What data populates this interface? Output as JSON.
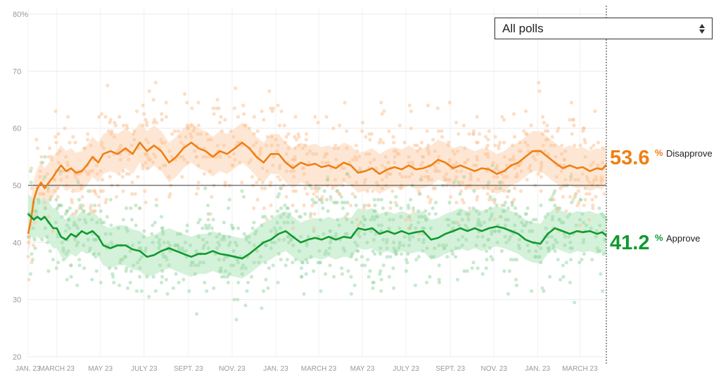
{
  "controls": {
    "poll_filter": {
      "selected": "All polls",
      "icon": "updown-arrows-icon"
    }
  },
  "chart_data": {
    "type": "line",
    "title": "",
    "xlabel": "",
    "ylabel": "",
    "ylim": [
      20,
      80
    ],
    "x_range": [
      "2023-01-20",
      "2025-04-07"
    ],
    "y_ticks": [
      "20",
      "30",
      "40",
      "50",
      "60",
      "70",
      "80%"
    ],
    "y_tick_values": [
      20,
      30,
      40,
      50,
      60,
      70,
      80
    ],
    "x_ticks": [
      {
        "date": "2023-01-20",
        "label": "JAN. 23"
      },
      {
        "date": "2023-03-01",
        "label": "MARCH 23"
      },
      {
        "date": "2023-05-01",
        "label": "MAY 23"
      },
      {
        "date": "2023-07-01",
        "label": "JULY 23"
      },
      {
        "date": "2023-09-01",
        "label": "SEPT. 23"
      },
      {
        "date": "2023-11-01",
        "label": "NOV. 23"
      },
      {
        "date": "2024-01-01",
        "label": "JAN. 23"
      },
      {
        "date": "2024-03-01",
        "label": "MARCH 23"
      },
      {
        "date": "2024-05-01",
        "label": "MAY 23"
      },
      {
        "date": "2024-07-01",
        "label": "JULY 23"
      },
      {
        "date": "2024-09-01",
        "label": "SEPT. 23"
      },
      {
        "date": "2024-11-01",
        "label": "NOV. 23"
      },
      {
        "date": "2025-01-01",
        "label": "JAN. 23"
      },
      {
        "date": "2025-03-01",
        "label": "MARCH 23"
      }
    ],
    "reference_line": 50,
    "grid": true,
    "legend": "right",
    "series": [
      {
        "name": "Disapprove",
        "end_value": "53.6",
        "end_unit": "%",
        "color": "#f07f13",
        "poll_color": "#fbc395",
        "band_color": "#fde3cd",
        "band_halfwidth": 3.5,
        "scatter_spread": 4.5,
        "points": [
          [
            "2023-01-20",
            41.5
          ],
          [
            "2023-01-24",
            44.0
          ],
          [
            "2023-01-28",
            47.5
          ],
          [
            "2023-02-02",
            49.5
          ],
          [
            "2023-02-07",
            50.5
          ],
          [
            "2023-02-12",
            49.5
          ],
          [
            "2023-02-18",
            50.5
          ],
          [
            "2023-02-24",
            51.5
          ],
          [
            "2023-03-01",
            52.5
          ],
          [
            "2023-03-07",
            53.5
          ],
          [
            "2023-03-14",
            52.5
          ],
          [
            "2023-03-21",
            53.0
          ],
          [
            "2023-03-28",
            52.2
          ],
          [
            "2023-04-05",
            52.5
          ],
          [
            "2023-04-12",
            53.5
          ],
          [
            "2023-04-20",
            55.0
          ],
          [
            "2023-04-28",
            54.0
          ],
          [
            "2023-05-05",
            55.5
          ],
          [
            "2023-05-15",
            56.0
          ],
          [
            "2023-05-25",
            55.5
          ],
          [
            "2023-06-05",
            56.5
          ],
          [
            "2023-06-15",
            55.5
          ],
          [
            "2023-06-25",
            57.5
          ],
          [
            "2023-07-05",
            56.0
          ],
          [
            "2023-07-15",
            57.0
          ],
          [
            "2023-07-25",
            56.0
          ],
          [
            "2023-08-05",
            54.0
          ],
          [
            "2023-08-15",
            55.0
          ],
          [
            "2023-08-25",
            56.5
          ],
          [
            "2023-09-05",
            57.5
          ],
          [
            "2023-09-15",
            56.5
          ],
          [
            "2023-09-25",
            56.0
          ],
          [
            "2023-10-05",
            55.0
          ],
          [
            "2023-10-15",
            56.0
          ],
          [
            "2023-10-25",
            55.5
          ],
          [
            "2023-11-05",
            56.5
          ],
          [
            "2023-11-15",
            57.5
          ],
          [
            "2023-11-25",
            56.5
          ],
          [
            "2023-12-05",
            55.0
          ],
          [
            "2023-12-15",
            54.0
          ],
          [
            "2023-12-25",
            55.5
          ],
          [
            "2024-01-05",
            55.5
          ],
          [
            "2024-01-15",
            54.0
          ],
          [
            "2024-01-25",
            53.0
          ],
          [
            "2024-02-05",
            54.0
          ],
          [
            "2024-02-15",
            53.5
          ],
          [
            "2024-02-25",
            53.8
          ],
          [
            "2024-03-05",
            53.2
          ],
          [
            "2024-03-15",
            53.5
          ],
          [
            "2024-03-25",
            53.0
          ],
          [
            "2024-04-05",
            54.0
          ],
          [
            "2024-04-15",
            53.5
          ],
          [
            "2024-04-25",
            52.2
          ],
          [
            "2024-05-05",
            52.5
          ],
          [
            "2024-05-15",
            53.0
          ],
          [
            "2024-05-25",
            52.0
          ],
          [
            "2024-06-05",
            52.8
          ],
          [
            "2024-06-15",
            53.2
          ],
          [
            "2024-06-25",
            52.8
          ],
          [
            "2024-07-05",
            53.5
          ],
          [
            "2024-07-15",
            52.8
          ],
          [
            "2024-07-25",
            53.0
          ],
          [
            "2024-08-05",
            53.5
          ],
          [
            "2024-08-15",
            54.5
          ],
          [
            "2024-08-25",
            54.0
          ],
          [
            "2024-09-05",
            53.0
          ],
          [
            "2024-09-15",
            53.5
          ],
          [
            "2024-09-25",
            53.0
          ],
          [
            "2024-10-05",
            52.5
          ],
          [
            "2024-10-15",
            53.0
          ],
          [
            "2024-10-25",
            52.8
          ],
          [
            "2024-11-05",
            52.0
          ],
          [
            "2024-11-15",
            52.5
          ],
          [
            "2024-11-25",
            53.5
          ],
          [
            "2024-12-05",
            54.0
          ],
          [
            "2024-12-15",
            55.0
          ],
          [
            "2024-12-25",
            56.0
          ],
          [
            "2025-01-05",
            56.0
          ],
          [
            "2025-01-15",
            55.0
          ],
          [
            "2025-01-25",
            54.0
          ],
          [
            "2025-02-05",
            53.0
          ],
          [
            "2025-02-15",
            53.5
          ],
          [
            "2025-02-25",
            53.0
          ],
          [
            "2025-03-05",
            53.2
          ],
          [
            "2025-03-15",
            52.5
          ],
          [
            "2025-03-25",
            53.0
          ],
          [
            "2025-04-01",
            52.8
          ],
          [
            "2025-04-07",
            53.6
          ]
        ]
      },
      {
        "name": "Approve",
        "end_value": "41.2",
        "end_unit": "%",
        "color": "#0f9a2e",
        "poll_color": "#9ad9a8",
        "band_color": "#cdeed4",
        "band_halfwidth": 3.5,
        "scatter_spread": 4.5,
        "points": [
          [
            "2023-01-20",
            45.0
          ],
          [
            "2023-01-24",
            44.5
          ],
          [
            "2023-01-28",
            44.0
          ],
          [
            "2023-02-02",
            44.5
          ],
          [
            "2023-02-07",
            44.0
          ],
          [
            "2023-02-12",
            44.5
          ],
          [
            "2023-02-18",
            43.5
          ],
          [
            "2023-02-24",
            42.5
          ],
          [
            "2023-03-01",
            42.5
          ],
          [
            "2023-03-07",
            41.0
          ],
          [
            "2023-03-14",
            40.5
          ],
          [
            "2023-03-21",
            41.5
          ],
          [
            "2023-03-28",
            41.0
          ],
          [
            "2023-04-05",
            42.0
          ],
          [
            "2023-04-12",
            41.5
          ],
          [
            "2023-04-20",
            42.0
          ],
          [
            "2023-04-28",
            41.0
          ],
          [
            "2023-05-05",
            39.5
          ],
          [
            "2023-05-15",
            39.0
          ],
          [
            "2023-05-25",
            39.5
          ],
          [
            "2023-06-05",
            39.5
          ],
          [
            "2023-06-15",
            38.8
          ],
          [
            "2023-06-25",
            38.5
          ],
          [
            "2023-07-05",
            37.5
          ],
          [
            "2023-07-15",
            37.8
          ],
          [
            "2023-07-25",
            38.5
          ],
          [
            "2023-08-05",
            39.0
          ],
          [
            "2023-08-15",
            38.5
          ],
          [
            "2023-08-25",
            38.0
          ],
          [
            "2023-09-05",
            37.5
          ],
          [
            "2023-09-15",
            38.0
          ],
          [
            "2023-09-25",
            38.0
          ],
          [
            "2023-10-05",
            38.5
          ],
          [
            "2023-10-15",
            38.0
          ],
          [
            "2023-10-25",
            37.8
          ],
          [
            "2023-11-05",
            37.5
          ],
          [
            "2023-11-15",
            37.2
          ],
          [
            "2023-11-25",
            38.0
          ],
          [
            "2023-12-05",
            39.0
          ],
          [
            "2023-12-15",
            40.0
          ],
          [
            "2023-12-25",
            40.5
          ],
          [
            "2024-01-05",
            41.5
          ],
          [
            "2024-01-15",
            42.0
          ],
          [
            "2024-01-25",
            41.0
          ],
          [
            "2024-02-05",
            40.0
          ],
          [
            "2024-02-15",
            40.5
          ],
          [
            "2024-02-25",
            40.8
          ],
          [
            "2024-03-05",
            40.5
          ],
          [
            "2024-03-15",
            41.0
          ],
          [
            "2024-03-25",
            40.5
          ],
          [
            "2024-04-05",
            41.0
          ],
          [
            "2024-04-15",
            40.8
          ],
          [
            "2024-04-25",
            42.5
          ],
          [
            "2024-05-05",
            42.2
          ],
          [
            "2024-05-15",
            42.5
          ],
          [
            "2024-05-25",
            41.5
          ],
          [
            "2024-06-05",
            42.0
          ],
          [
            "2024-06-15",
            41.5
          ],
          [
            "2024-06-25",
            42.0
          ],
          [
            "2024-07-05",
            41.5
          ],
          [
            "2024-07-15",
            41.8
          ],
          [
            "2024-07-25",
            42.0
          ],
          [
            "2024-08-05",
            40.5
          ],
          [
            "2024-08-15",
            40.8
          ],
          [
            "2024-08-25",
            41.5
          ],
          [
            "2024-09-05",
            42.0
          ],
          [
            "2024-09-15",
            42.5
          ],
          [
            "2024-09-25",
            42.0
          ],
          [
            "2024-10-05",
            42.5
          ],
          [
            "2024-10-15",
            42.0
          ],
          [
            "2024-10-25",
            42.5
          ],
          [
            "2024-11-05",
            42.8
          ],
          [
            "2024-11-15",
            42.5
          ],
          [
            "2024-11-25",
            42.0
          ],
          [
            "2024-12-05",
            41.5
          ],
          [
            "2024-12-15",
            40.5
          ],
          [
            "2024-12-25",
            40.0
          ],
          [
            "2025-01-05",
            39.8
          ],
          [
            "2025-01-15",
            41.5
          ],
          [
            "2025-01-25",
            42.5
          ],
          [
            "2025-02-05",
            42.0
          ],
          [
            "2025-02-15",
            41.5
          ],
          [
            "2025-02-25",
            42.0
          ],
          [
            "2025-03-05",
            41.8
          ],
          [
            "2025-03-15",
            42.0
          ],
          [
            "2025-03-25",
            41.5
          ],
          [
            "2025-04-01",
            41.8
          ],
          [
            "2025-04-07",
            41.2
          ]
        ]
      }
    ]
  }
}
